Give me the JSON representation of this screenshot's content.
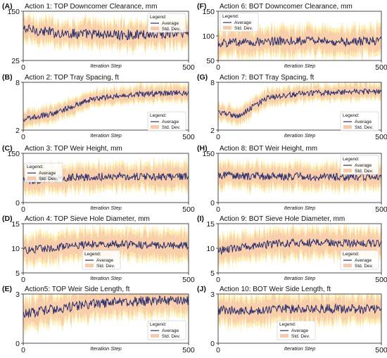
{
  "figure": {
    "shared_xlabel": "Iteration Step",
    "legend_title": "Legend:",
    "legend_average": "Average",
    "legend_std": "Std. Dev."
  },
  "chart_data": [
    {
      "type": "line",
      "panel": "(A)",
      "title": "Action 1: TOP Downcomer Clearance, mm",
      "xlabel": "Iteration Step",
      "ylabel": "",
      "xlim": [
        0,
        500
      ],
      "ylim": [
        25,
        150
      ],
      "xticks": [
        0,
        500
      ],
      "yticks": [
        25,
        150
      ],
      "grid": false,
      "legend": "top-right",
      "series": [
        {
          "name": "Average",
          "color": "#2b2d6e",
          "trend": [
            [
              0,
              105
            ],
            [
              100,
              95
            ],
            [
              200,
              92
            ],
            [
              300,
              90
            ],
            [
              400,
              92
            ],
            [
              500,
              95
            ]
          ],
          "noise": 13
        },
        {
          "name": "Std. Dev.",
          "color": "#f7c9a8",
          "extra_color": "#fde17a",
          "band_halfwidth": 28
        }
      ]
    },
    {
      "type": "line",
      "panel": "(B)",
      "title": "Action 2: TOP Tray Spacing, ft",
      "xlabel": "Iteration Step",
      "ylabel": "",
      "xlim": [
        0,
        500
      ],
      "ylim": [
        2,
        8
      ],
      "xticks": [
        0,
        500
      ],
      "yticks": [
        2,
        8
      ],
      "grid": false,
      "legend": "right",
      "series": [
        {
          "name": "Average",
          "color": "#2b2d6e",
          "trend": [
            [
              0,
              3.3
            ],
            [
              100,
              4.2
            ],
            [
              200,
              5.8
            ],
            [
              300,
              6.4
            ],
            [
              400,
              6.6
            ],
            [
              500,
              6.7
            ]
          ],
          "noise": 0.35
        },
        {
          "name": "Std. Dev.",
          "color": "#f7c9a8",
          "extra_color": "#fde17a",
          "band_halfwidth": 0.9
        }
      ]
    },
    {
      "type": "line",
      "panel": "(C)",
      "title": "Action 3: TOP Weir Height, mm",
      "xlabel": "Iteration Step",
      "ylabel": "",
      "xlim": [
        0,
        500
      ],
      "ylim": [
        0,
        150
      ],
      "xticks": [
        0,
        500
      ],
      "yticks": [
        0,
        150
      ],
      "grid": false,
      "legend": "left",
      "series": [
        {
          "name": "Average",
          "color": "#2b2d6e",
          "trend": [
            [
              0,
              65
            ],
            [
              100,
              75
            ],
            [
              200,
              78
            ],
            [
              300,
              80
            ],
            [
              400,
              78
            ],
            [
              500,
              80
            ]
          ],
          "noise": 12
        },
        {
          "name": "Std. Dev.",
          "color": "#f7c9a8",
          "extra_color": "#fde17a",
          "band_halfwidth": 35
        }
      ]
    },
    {
      "type": "line",
      "panel": "(D)",
      "title": "Action 4: TOP Sieve Hole Diameter, mm",
      "xlabel": "Iteration Step",
      "ylabel": "",
      "xlim": [
        0,
        500
      ],
      "ylim": [
        5,
        15
      ],
      "xticks": [
        0,
        500
      ],
      "yticks": [
        5,
        10,
        15
      ],
      "grid": false,
      "legend": "bottom-center",
      "series": [
        {
          "name": "Average",
          "color": "#2b2d6e",
          "trend": [
            [
              0,
              9.5
            ],
            [
              100,
              10.2
            ],
            [
              200,
              10.8
            ],
            [
              300,
              10.8
            ],
            [
              400,
              10.6
            ],
            [
              500,
              10.6
            ]
          ],
          "noise": 0.8
        },
        {
          "name": "Std. Dev.",
          "color": "#f7c9a8",
          "extra_color": "#fde17a",
          "band_halfwidth": 2.6
        }
      ]
    },
    {
      "type": "line",
      "panel": "(E)",
      "title": "Action5: TOP Weir Side Length, ft",
      "xlabel": "Iteration Step",
      "ylabel": "",
      "xlim": [
        0,
        500
      ],
      "ylim": [
        0,
        3
      ],
      "xticks": [
        0,
        500
      ],
      "yticks": [
        0,
        3
      ],
      "grid": false,
      "legend": "bottom-right",
      "series": [
        {
          "name": "Average",
          "color": "#2b2d6e",
          "trend": [
            [
              0,
              1.8
            ],
            [
              100,
              2.1
            ],
            [
              200,
              2.4
            ],
            [
              300,
              2.5
            ],
            [
              400,
              2.6
            ],
            [
              500,
              2.6
            ]
          ],
          "noise": 0.3
        },
        {
          "name": "Std. Dev.",
          "color": "#f7c9a8",
          "extra_color": "#fde17a",
          "band_halfwidth": 0.8
        }
      ]
    },
    {
      "type": "line",
      "panel": "(F)",
      "title": "Action 6: BOT Downcomer Clearance, mm",
      "xlabel": "Iteration Step",
      "ylabel": "",
      "xlim": [
        0,
        500
      ],
      "ylim": [
        50,
        150
      ],
      "xticks": [
        0,
        500
      ],
      "yticks": [
        50,
        100,
        150
      ],
      "grid": false,
      "legend": "top-left",
      "series": [
        {
          "name": "Average",
          "color": "#2b2d6e",
          "trend": [
            [
              0,
              85
            ],
            [
              100,
              88
            ],
            [
              200,
              90
            ],
            [
              300,
              90
            ],
            [
              400,
              88
            ],
            [
              500,
              90
            ]
          ],
          "noise": 9
        },
        {
          "name": "Std. Dev.",
          "color": "#f7c9a8",
          "extra_color": "#fde17a",
          "band_halfwidth": 25
        }
      ]
    },
    {
      "type": "line",
      "panel": "(G)",
      "title": "Action 7: BOT Tray Spacing, ft",
      "xlabel": "Iteration Step",
      "ylabel": "",
      "xlim": [
        0,
        500
      ],
      "ylim": [
        2,
        8
      ],
      "xticks": [
        0,
        500
      ],
      "yticks": [
        2,
        8
      ],
      "grid": false,
      "legend": "right",
      "series": [
        {
          "name": "Average",
          "color": "#2b2d6e",
          "trend": [
            [
              0,
              4.2
            ],
            [
              60,
              3.8
            ],
            [
              150,
              6.0
            ],
            [
              250,
              6.6
            ],
            [
              400,
              6.8
            ],
            [
              500,
              6.8
            ]
          ],
          "noise": 0.35
        },
        {
          "name": "Std. Dev.",
          "color": "#f7c9a8",
          "extra_color": "#fde17a",
          "band_halfwidth": 0.9
        }
      ]
    },
    {
      "type": "line",
      "panel": "(H)",
      "title": "Action 8: BOT Weir Height, mm",
      "xlabel": "Iteration Step",
      "ylabel": "",
      "xlim": [
        0,
        500
      ],
      "ylim": [
        0,
        150
      ],
      "xticks": [
        0,
        500
      ],
      "yticks": [
        0,
        150
      ],
      "grid": false,
      "legend": "top-right",
      "series": [
        {
          "name": "Average",
          "color": "#2b2d6e",
          "trend": [
            [
              0,
              85
            ],
            [
              100,
              80
            ],
            [
              200,
              80
            ],
            [
              300,
              78
            ],
            [
              400,
              78
            ],
            [
              500,
              80
            ]
          ],
          "noise": 12
        },
        {
          "name": "Std. Dev.",
          "color": "#f7c9a8",
          "extra_color": "#fde17a",
          "band_halfwidth": 33
        }
      ]
    },
    {
      "type": "line",
      "panel": "(I)",
      "title": "Action 9: BOT Sieve Hole Diameter, mm",
      "xlabel": "Iteration Step",
      "ylabel": "",
      "xlim": [
        0,
        500
      ],
      "ylim": [
        5,
        15
      ],
      "xticks": [
        0,
        500
      ],
      "yticks": [
        5,
        10,
        15
      ],
      "grid": false,
      "legend": "bottom-right",
      "series": [
        {
          "name": "Average",
          "color": "#2b2d6e",
          "trend": [
            [
              0,
              9.5
            ],
            [
              100,
              10.5
            ],
            [
              200,
              11.0
            ],
            [
              300,
              11.2
            ],
            [
              400,
              11.0
            ],
            [
              500,
              11.0
            ]
          ],
          "noise": 0.8
        },
        {
          "name": "Std. Dev.",
          "color": "#f7c9a8",
          "extra_color": "#fde17a",
          "band_halfwidth": 2.5
        }
      ]
    },
    {
      "type": "line",
      "panel": "(J)",
      "title": "Action 10: BOT Weir Side Length, ft",
      "xlabel": "Iteration Step",
      "ylabel": "",
      "xlim": [
        0,
        500
      ],
      "ylim": [
        0,
        3
      ],
      "xticks": [
        0,
        500
      ],
      "yticks": [
        0,
        3
      ],
      "grid": false,
      "legend": "bottom-center",
      "series": [
        {
          "name": "Average",
          "color": "#2b2d6e",
          "trend": [
            [
              0,
              2.0
            ],
            [
              100,
              2.0
            ],
            [
              200,
              2.1
            ],
            [
              300,
              2.1
            ],
            [
              400,
              2.1
            ],
            [
              500,
              2.1
            ]
          ],
          "noise": 0.28
        },
        {
          "name": "Std. Dev.",
          "color": "#f7c9a8",
          "extra_color": "#fde17a",
          "band_halfwidth": 0.75
        }
      ]
    }
  ]
}
